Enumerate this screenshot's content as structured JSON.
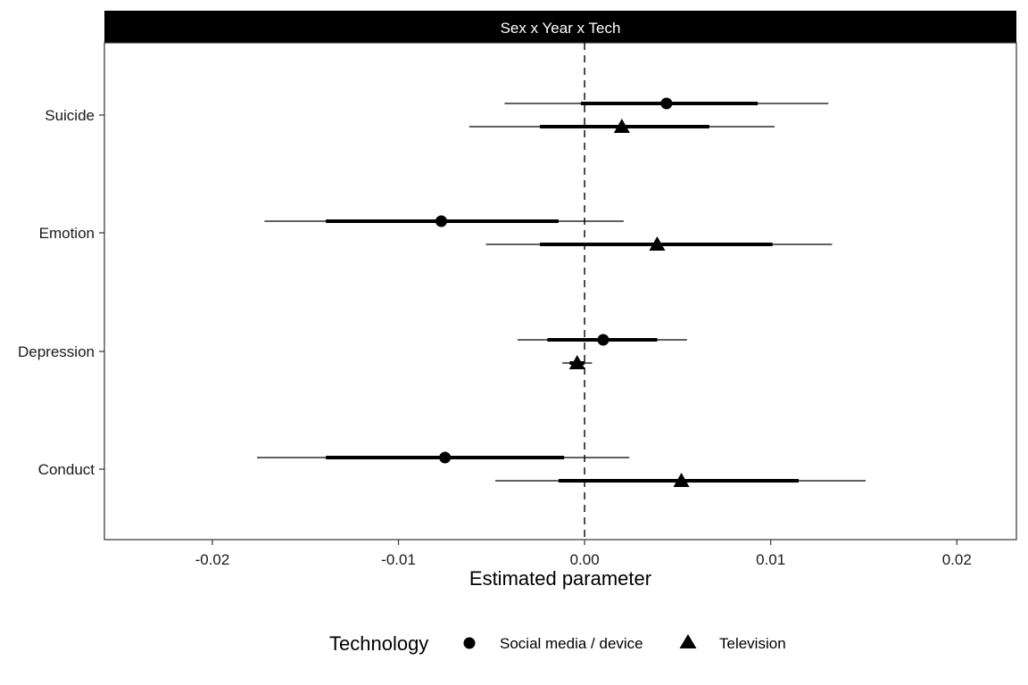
{
  "chart_data": {
    "type": "scatter",
    "subtype": "coefficient-plot",
    "title": "",
    "facet_label": "Sex x Year x Tech",
    "xlabel": "Estimated parameter",
    "ylabel": "",
    "xlim": [
      -0.0258,
      0.0232
    ],
    "x_ticks": [
      -0.02,
      -0.01,
      0.0,
      0.01,
      0.02
    ],
    "x_tick_labels": [
      "-0.02",
      "-0.01",
      "0.00",
      "0.01",
      "0.02"
    ],
    "categories": [
      "Suicide",
      "Emotion",
      "Depression",
      "Conduct"
    ],
    "reference_line": {
      "x": 0.0,
      "style": "dashed"
    },
    "grid": false,
    "legend": {
      "title": "Technology",
      "placement": "bottom",
      "entries": [
        {
          "name": "Social media / device",
          "shape": "circle"
        },
        {
          "name": "Television",
          "shape": "triangle"
        }
      ]
    },
    "series": [
      {
        "name": "Social media / device",
        "shape": "circle",
        "points": [
          {
            "category": "Suicide",
            "estimate": 0.0044,
            "inner": [
              -0.0002,
              0.0093
            ],
            "outer": [
              -0.0043,
              0.0131
            ]
          },
          {
            "category": "Emotion",
            "estimate": -0.0077,
            "inner": [
              -0.0139,
              -0.0014
            ],
            "outer": [
              -0.0172,
              0.0021
            ]
          },
          {
            "category": "Depression",
            "estimate": 0.001,
            "inner": [
              -0.002,
              0.0039
            ],
            "outer": [
              -0.0036,
              0.0055
            ]
          },
          {
            "category": "Conduct",
            "estimate": -0.0075,
            "inner": [
              -0.0139,
              -0.0011
            ],
            "outer": [
              -0.0176,
              0.0024
            ]
          }
        ]
      },
      {
        "name": "Television",
        "shape": "triangle",
        "points": [
          {
            "category": "Suicide",
            "estimate": 0.002,
            "inner": [
              -0.0024,
              0.0067
            ],
            "outer": [
              -0.0062,
              0.0102
            ]
          },
          {
            "category": "Emotion",
            "estimate": 0.0039,
            "inner": [
              -0.0024,
              0.0101
            ],
            "outer": [
              -0.0053,
              0.0133
            ]
          },
          {
            "category": "Depression",
            "estimate": -0.0004,
            "inner": [
              -0.0008,
              0.0
            ],
            "outer": [
              -0.0012,
              0.0004
            ]
          },
          {
            "category": "Conduct",
            "estimate": 0.0052,
            "inner": [
              -0.0014,
              0.0115
            ],
            "outer": [
              -0.0048,
              0.0151
            ]
          }
        ]
      }
    ]
  }
}
